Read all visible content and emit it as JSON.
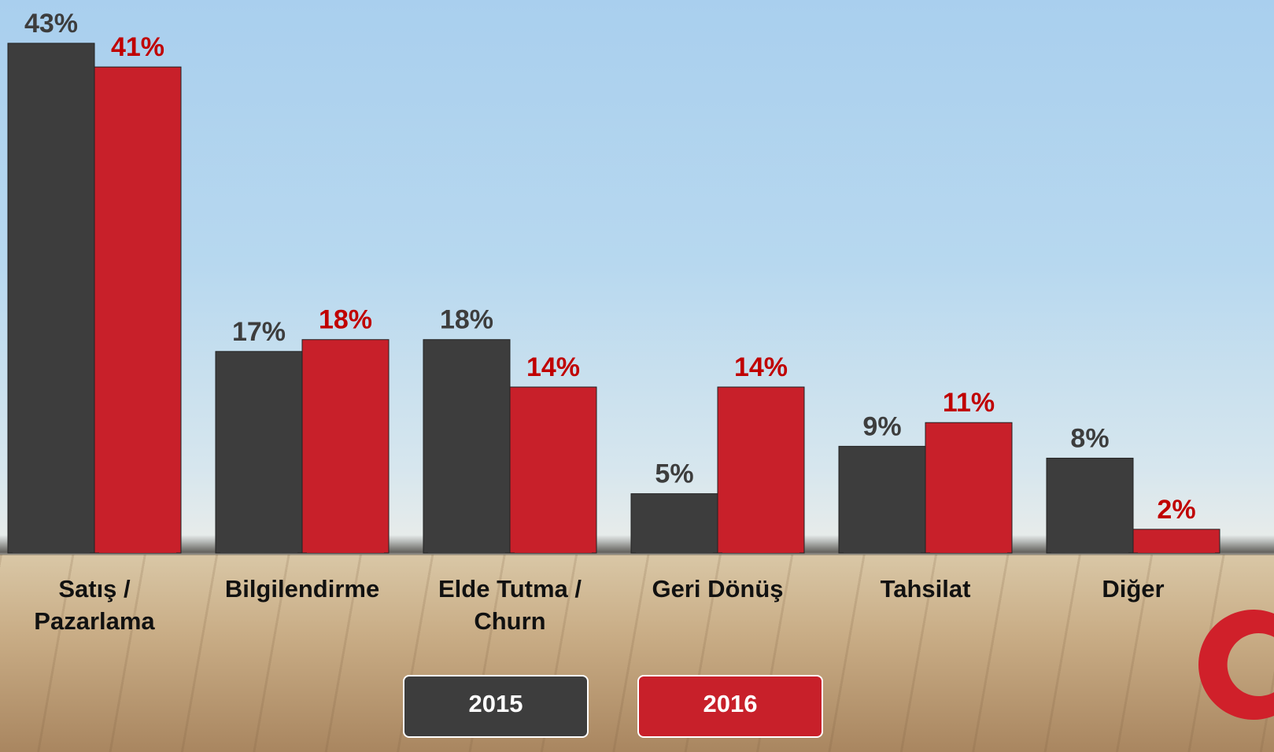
{
  "chart_data": {
    "type": "bar",
    "categories": [
      "Satış / Pazarlama",
      "Bilgilendirme",
      "Elde Tutma / Churn",
      "Geri Dönüş",
      "Tahsilat",
      "Diğer"
    ],
    "series": [
      {
        "name": "2015",
        "color": "#3d3d3d",
        "values": [
          43,
          17,
          18,
          5,
          9,
          8
        ],
        "value_labels": [
          "43%",
          "17%",
          "18%",
          "5%",
          "9%",
          "8%"
        ]
      },
      {
        "name": "2016",
        "color": "#c8202a",
        "values": [
          41,
          18,
          14,
          14,
          11,
          2
        ],
        "value_labels": [
          "41%",
          "18%",
          "14%",
          "14%",
          "11%",
          "2%"
        ]
      }
    ]
  }
}
